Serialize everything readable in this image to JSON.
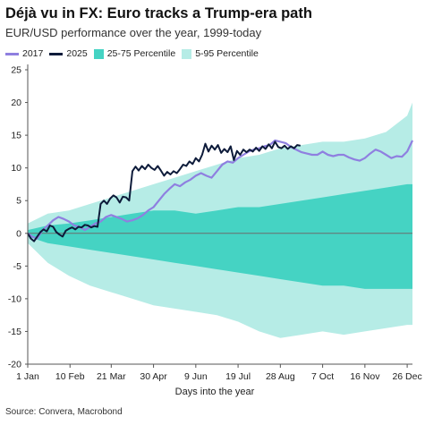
{
  "title": "Déjà vu in FX: Euro tracks a Trump-era path",
  "subtitle": "EUR/USD performance over the year, 1999-today",
  "source": "Source: Convera, Macrobond",
  "legend": [
    {
      "label": "2017",
      "kind": "line",
      "color": "#8f7fe0"
    },
    {
      "label": "2025",
      "kind": "line",
      "color": "#0d1b3a"
    },
    {
      "label": "25-75 Percentile",
      "kind": "box",
      "color": "#45d3c3"
    },
    {
      "label": "5-95 Percentile",
      "kind": "box",
      "color": "#b6ece6"
    }
  ],
  "chart_data": {
    "type": "line",
    "xlabel": "Days into the year",
    "ylabel": "",
    "xlim": [
      1,
      365
    ],
    "ylim": [
      -20,
      25
    ],
    "yticks": [
      25,
      20,
      15,
      10,
      5,
      0,
      -5,
      -10,
      -15,
      -20
    ],
    "xticks": [
      {
        "day": 1,
        "label": "1 Jan"
      },
      {
        "day": 41,
        "label": "10 Feb"
      },
      {
        "day": 80,
        "label": "21 Mar"
      },
      {
        "day": 120,
        "label": "30 Apr"
      },
      {
        "day": 160,
        "label": "9 Jun"
      },
      {
        "day": 200,
        "label": "19 Jul"
      },
      {
        "day": 240,
        "label": "28 Aug"
      },
      {
        "day": 280,
        "label": "7 Oct"
      },
      {
        "day": 320,
        "label": "16 Nov"
      },
      {
        "day": 360,
        "label": "26 Dec"
      }
    ],
    "bands": [
      {
        "name": "5-95 Percentile",
        "x": [
          1,
          20,
          40,
          60,
          80,
          100,
          120,
          140,
          160,
          180,
          200,
          220,
          240,
          260,
          280,
          300,
          320,
          340,
          360,
          365
        ],
        "lower": [
          -1.5,
          -4.5,
          -6.5,
          -8,
          -9,
          -10,
          -11,
          -11.5,
          -12,
          -12.5,
          -13.5,
          -15,
          -16,
          -15.5,
          -15,
          -15.5,
          -15,
          -14.5,
          -14,
          -14
        ],
        "upper": [
          1.5,
          3,
          3.5,
          4.5,
          5.5,
          6.5,
          7.5,
          8.5,
          9.5,
          10.5,
          11.5,
          12,
          13,
          13.5,
          14,
          14,
          14.5,
          15.5,
          18,
          20
        ]
      },
      {
        "name": "25-75 Percentile",
        "x": [
          1,
          20,
          40,
          60,
          80,
          100,
          120,
          140,
          160,
          180,
          200,
          220,
          240,
          260,
          280,
          300,
          320,
          340,
          360,
          365
        ],
        "lower": [
          -0.5,
          -1.5,
          -2,
          -2.5,
          -3,
          -3.5,
          -4,
          -4.5,
          -5,
          -5.5,
          -6,
          -6.5,
          -7,
          -7.5,
          -8,
          -8,
          -8.5,
          -8.5,
          -8.5,
          -8.5
        ],
        "upper": [
          0.5,
          1.2,
          1.5,
          2,
          2.5,
          3,
          3.5,
          3.5,
          3,
          3.5,
          4,
          4,
          4.5,
          5,
          5.5,
          6,
          6.5,
          7,
          7.5,
          7.5
        ]
      }
    ],
    "series": [
      {
        "name": "2017",
        "color": "#8f7fe0",
        "x": [
          1,
          5,
          10,
          15,
          20,
          25,
          30,
          35,
          40,
          45,
          50,
          55,
          60,
          65,
          70,
          75,
          80,
          85,
          90,
          95,
          100,
          105,
          110,
          115,
          120,
          125,
          130,
          135,
          140,
          145,
          150,
          155,
          160,
          165,
          170,
          175,
          180,
          185,
          190,
          195,
          200,
          205,
          210,
          215,
          220,
          225,
          230,
          235,
          240,
          245,
          250,
          255,
          260,
          265,
          270,
          275,
          280,
          285,
          290,
          295,
          300,
          305,
          310,
          315,
          320,
          325,
          330,
          335,
          340,
          345,
          350,
          355,
          360,
          365
        ],
        "y": [
          0,
          -0.5,
          -0.8,
          0.5,
          1.2,
          2.0,
          2.5,
          2.2,
          1.8,
          1.2,
          1.0,
          0.5,
          1.0,
          1.5,
          1.8,
          2.5,
          2.8,
          2.5,
          2.2,
          1.8,
          2.0,
          2.3,
          2.8,
          3.5,
          4.0,
          5.0,
          6.0,
          6.8,
          7.5,
          7.2,
          7.8,
          8.2,
          8.8,
          9.2,
          8.8,
          8.5,
          9.5,
          10.5,
          11.0,
          10.8,
          11.5,
          12.0,
          12.5,
          12.8,
          13.0,
          13.3,
          13.5,
          14.2,
          14.0,
          13.8,
          13.2,
          12.8,
          12.4,
          12.2,
          12.0,
          12.0,
          12.5,
          12.0,
          11.8,
          12.0,
          12.0,
          11.6,
          11.3,
          11.1,
          11.5,
          12.2,
          12.8,
          12.5,
          12.0,
          11.5,
          11.8,
          11.7,
          12.5,
          14.2
        ]
      },
      {
        "name": "2025",
        "color": "#0d1b3a",
        "x": [
          1,
          4,
          7,
          10,
          13,
          16,
          19,
          22,
          25,
          28,
          31,
          34,
          37,
          40,
          43,
          46,
          49,
          52,
          55,
          58,
          61,
          64,
          67,
          70,
          73,
          76,
          79,
          82,
          85,
          88,
          91,
          94,
          97,
          100,
          103,
          106,
          109,
          112,
          115,
          118,
          121,
          124,
          127,
          130,
          133,
          136,
          139,
          142,
          145,
          148,
          151,
          154,
          157,
          160,
          163,
          166,
          169,
          172,
          175,
          178,
          181,
          184,
          187,
          190,
          193,
          196,
          199,
          202,
          205,
          208,
          211,
          214,
          217,
          220,
          223,
          226,
          229,
          232,
          235,
          238,
          241,
          244,
          247,
          250,
          253,
          256,
          259
        ],
        "y": [
          0,
          -0.8,
          -1.2,
          -0.5,
          0.2,
          0.6,
          0.3,
          1.2,
          1.0,
          0.2,
          -0.2,
          -0.5,
          0.4,
          0.7,
          0.9,
          0.6,
          1.0,
          0.9,
          1.3,
          1.2,
          0.9,
          1.1,
          1.0,
          4.5,
          5.0,
          4.5,
          5.3,
          5.8,
          5.5,
          4.7,
          5.6,
          5.5,
          5.0,
          9.5,
          10.2,
          9.6,
          10.3,
          9.8,
          10.5,
          10.0,
          9.7,
          10.3,
          9.6,
          8.8,
          9.4,
          9.0,
          9.5,
          9.2,
          9.8,
          10.5,
          10.3,
          11.0,
          10.6,
          11.5,
          11.0,
          12.0,
          13.7,
          12.5,
          13.4,
          12.8,
          13.5,
          12.3,
          12.9,
          12.4,
          13.3,
          11.2,
          12.6,
          12.0,
          12.8,
          12.4,
          12.8,
          12.5,
          13.1,
          12.6,
          13.3,
          12.9,
          13.6,
          13.0,
          14.0,
          13.2,
          13.0,
          13.4,
          12.9,
          13.3,
          13.0,
          13.5,
          13.4
        ]
      }
    ]
  }
}
